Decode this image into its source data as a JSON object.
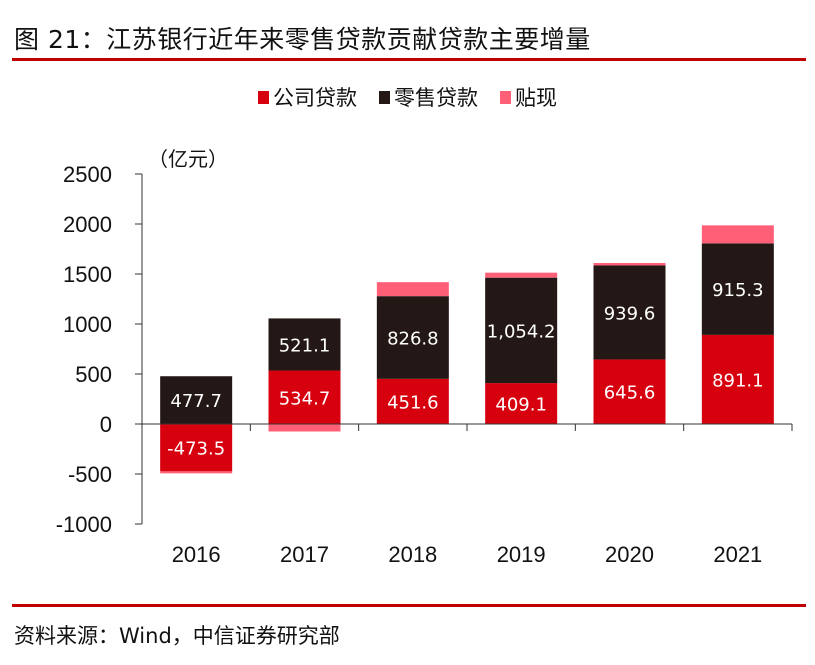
{
  "header": {
    "title": "图 21：江苏银行近年来零售贷款贡献贷款主要增量"
  },
  "footer": {
    "source": "资料来源：Wind，中信证券研究部"
  },
  "colors": {
    "corporate": "#d7000f",
    "retail": "#231815",
    "discount": "#ff6077",
    "rule": "#c00000"
  },
  "chart_data": {
    "type": "bar",
    "stacked": true,
    "title": "江苏银行近年来零售贷款贡献贷款主要增量",
    "unit_label": "（亿元）",
    "xlabel": "",
    "ylabel": "亿元",
    "ylim": [
      -1000,
      2500
    ],
    "yticks": [
      2500,
      2000,
      1500,
      1000,
      500,
      0,
      -500,
      -1000
    ],
    "grid": false,
    "legend_position": "top-center",
    "categories": [
      "2016",
      "2017",
      "2018",
      "2019",
      "2020",
      "2021"
    ],
    "series": [
      {
        "name": "公司贷款",
        "key": "corporate",
        "values": [
          -473.5,
          534.7,
          451.6,
          409.1,
          645.6,
          891.1
        ],
        "labels": [
          "-473.5",
          "534.7",
          "451.6",
          "409.1",
          "645.6",
          "891.1"
        ]
      },
      {
        "name": "零售贷款",
        "key": "retail",
        "values": [
          477.7,
          521.1,
          826.8,
          1054.2,
          939.6,
          915.3
        ],
        "labels": [
          "477.7",
          "521.1",
          "826.8",
          "1,054.2",
          "939.6",
          "915.3"
        ]
      },
      {
        "name": "贴现",
        "key": "discount",
        "values": [
          -20,
          -75,
          140,
          50,
          25,
          180
        ],
        "labels": null
      }
    ]
  }
}
